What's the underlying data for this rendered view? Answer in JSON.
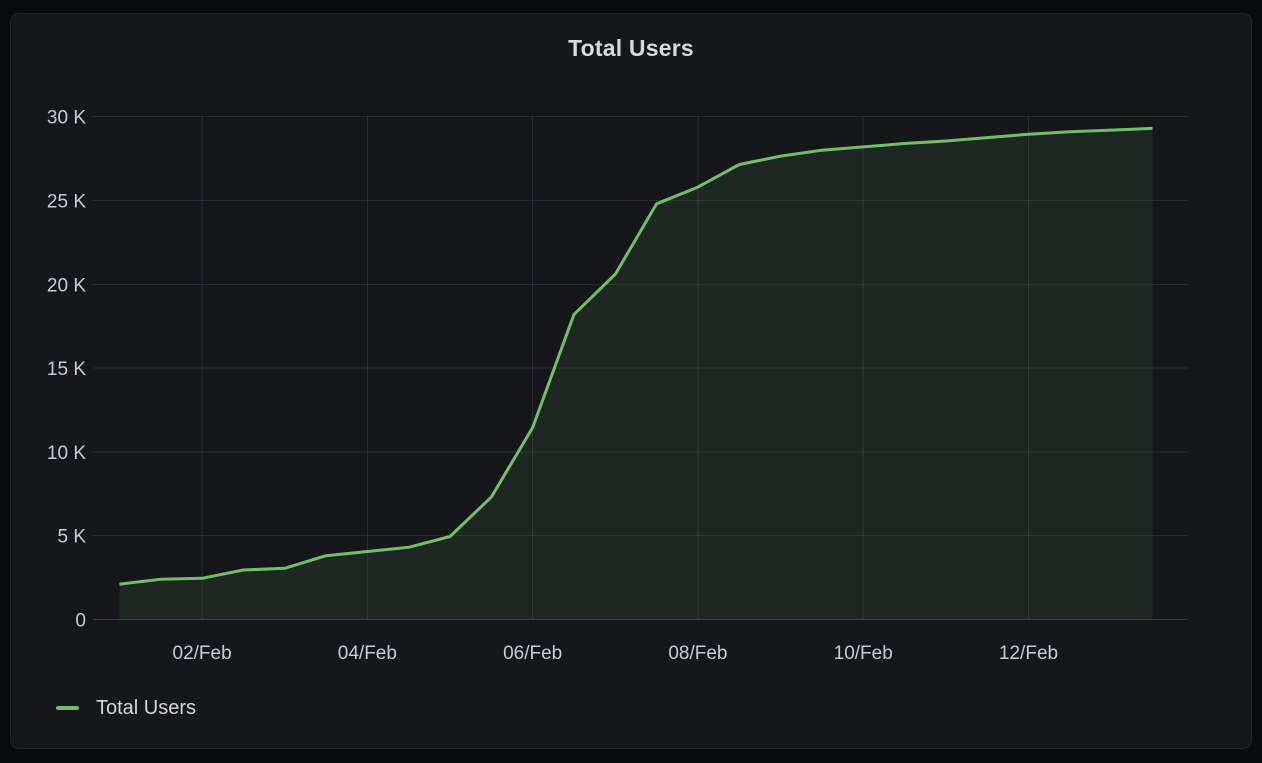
{
  "window": {
    "background": "#0a0b0c",
    "panel_background": "#15171a",
    "panel_border": "#24262b"
  },
  "chart_data": {
    "type": "area",
    "title": "Total Users",
    "xlabel": "",
    "ylabel": "",
    "grid": true,
    "legend_position": "bottom-left",
    "x_unit": "day of February (half-day sampling)",
    "y_range": [
      0,
      30000
    ],
    "x_range_days": [
      0.68,
      13.93
    ],
    "x_ticks": [
      {
        "day": 2,
        "label": "02/Feb"
      },
      {
        "day": 4,
        "label": "04/Feb"
      },
      {
        "day": 6,
        "label": "06/Feb"
      },
      {
        "day": 8,
        "label": "08/Feb"
      },
      {
        "day": 10,
        "label": "10/Feb"
      },
      {
        "day": 12,
        "label": "12/Feb"
      }
    ],
    "y_ticks": [
      {
        "value": 0,
        "label": "0"
      },
      {
        "value": 5000,
        "label": "5 K"
      },
      {
        "value": 10000,
        "label": "10 K"
      },
      {
        "value": 15000,
        "label": "15 K"
      },
      {
        "value": 20000,
        "label": "20 K"
      },
      {
        "value": 25000,
        "label": "25 K"
      },
      {
        "value": 30000,
        "label": "30 K"
      }
    ],
    "series": [
      {
        "name": "Total Users",
        "color": "#73bf69",
        "fill_opacity": 0.1,
        "line_width": 3,
        "points": [
          [
            1.0,
            2100
          ],
          [
            1.5,
            2400
          ],
          [
            2.0,
            2450
          ],
          [
            2.5,
            2950
          ],
          [
            3.0,
            3050
          ],
          [
            3.5,
            3800
          ],
          [
            4.0,
            4050
          ],
          [
            4.5,
            4300
          ],
          [
            5.0,
            4950
          ],
          [
            5.5,
            7300
          ],
          [
            6.0,
            11450
          ],
          [
            6.5,
            18200
          ],
          [
            7.0,
            20600
          ],
          [
            7.5,
            24800
          ],
          [
            8.0,
            25800
          ],
          [
            8.5,
            27150
          ],
          [
            9.0,
            27650
          ],
          [
            9.5,
            28000
          ],
          [
            10.0,
            28200
          ],
          [
            10.5,
            28400
          ],
          [
            11.0,
            28550
          ],
          [
            11.5,
            28750
          ],
          [
            12.0,
            28950
          ],
          [
            12.5,
            29100
          ],
          [
            13.0,
            29200
          ],
          [
            13.5,
            29300
          ]
        ]
      }
    ],
    "colors": {
      "title_text": "#d8d9da",
      "axis_text": "#c8cdd3",
      "grid_line": "rgba(204,215,235,0.11)",
      "zero_line": "rgba(204,215,235,0.20)"
    }
  }
}
